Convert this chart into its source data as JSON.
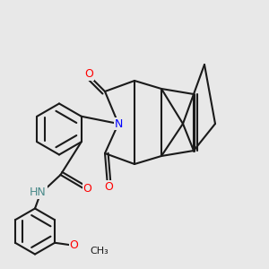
{
  "background_color": "#e8e8e8",
  "bond_color": "#1a1a1a",
  "bond_width": 1.5,
  "atom_colors": {
    "N": "#0000ff",
    "O": "#ff0000",
    "H": "#4a8a8a",
    "C": "#1a1a1a"
  },
  "font_size": 9
}
